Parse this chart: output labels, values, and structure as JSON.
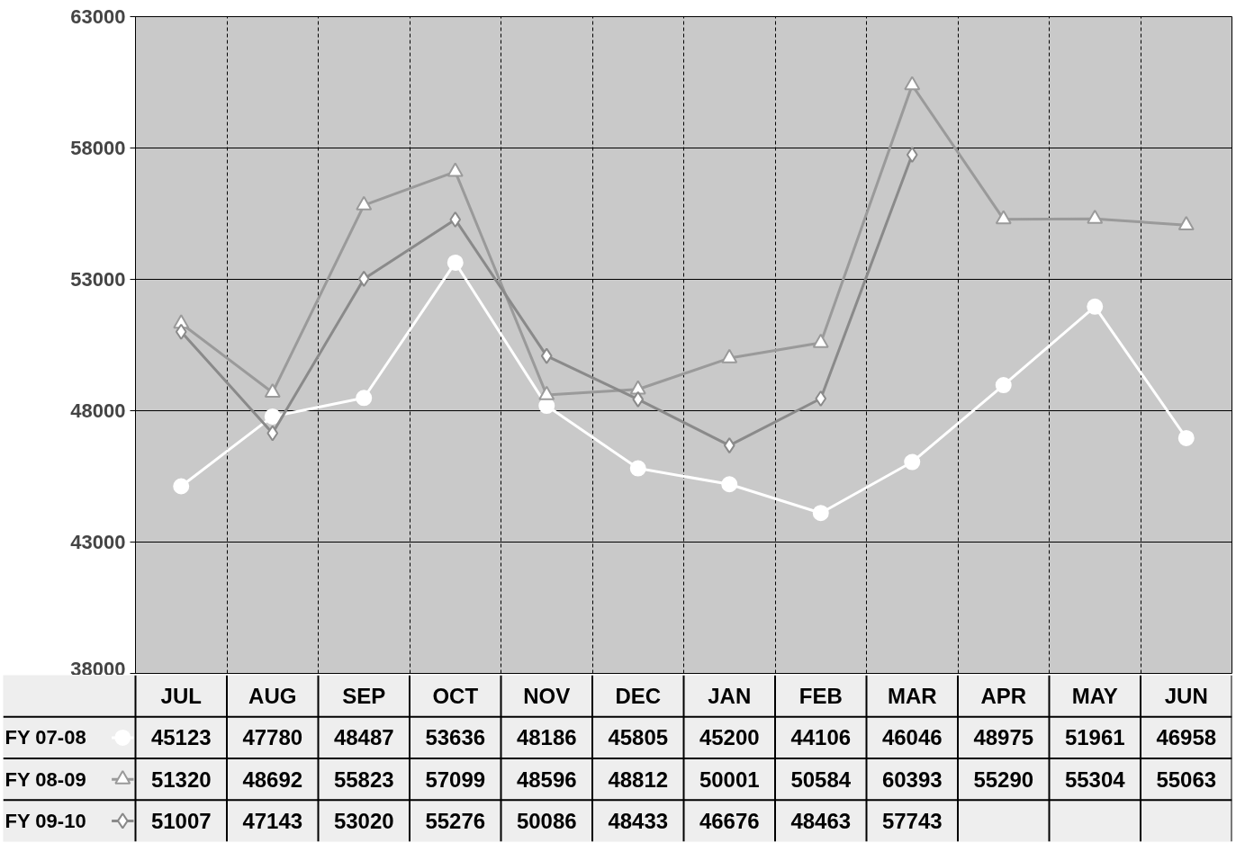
{
  "chart_data": {
    "type": "line",
    "categories": [
      "JUL",
      "AUG",
      "SEP",
      "OCT",
      "NOV",
      "DEC",
      "JAN",
      "FEB",
      "MAR",
      "APR",
      "MAY",
      "JUN"
    ],
    "series": [
      {
        "name": "FY 07-08",
        "color": "#ffffff",
        "marker": "circle",
        "values": [
          45123,
          47780,
          48487,
          53636,
          48186,
          45805,
          45200,
          44106,
          46046,
          48975,
          51961,
          46958
        ]
      },
      {
        "name": "FY 08-09",
        "color": "#9a9a9a",
        "marker": "triangle",
        "values": [
          51320,
          48692,
          55823,
          57099,
          48596,
          48812,
          50001,
          50584,
          60393,
          55290,
          55304,
          55063
        ]
      },
      {
        "name": "FY 09-10",
        "color": "#8a8a8a",
        "marker": "diamond",
        "values": [
          51007,
          47143,
          53020,
          55276,
          50086,
          48433,
          46676,
          48463,
          57743,
          null,
          null,
          null
        ]
      }
    ],
    "ylim": [
      38000,
      63000
    ],
    "yticks": [
      38000,
      43000,
      48000,
      53000,
      58000,
      63000
    ],
    "grid": true,
    "legend": "bottom left",
    "line_style": "solid",
    "data_labels": true
  }
}
